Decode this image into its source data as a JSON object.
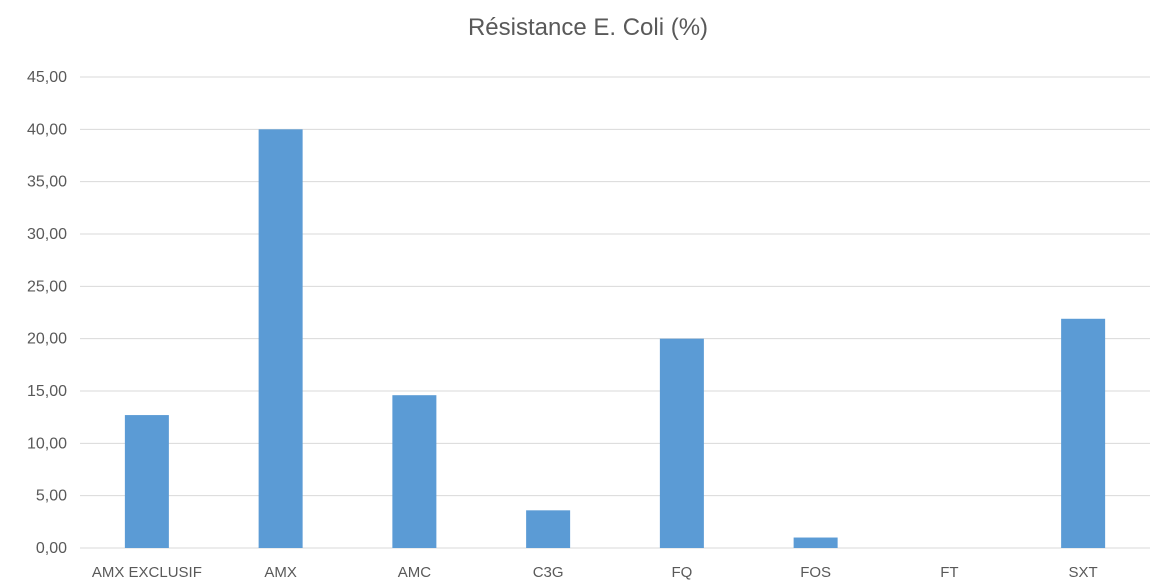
{
  "chart_data": {
    "type": "bar",
    "title": "Résistance E. Coli (%)",
    "categories": [
      "AMX EXCLUSIF",
      "AMX",
      "AMC",
      "C3G",
      "FQ",
      "FOS",
      "FT",
      "SXT"
    ],
    "values": [
      12.7,
      40.0,
      14.6,
      3.6,
      20.0,
      1.0,
      0.0,
      21.9
    ],
    "ylim": [
      0,
      45
    ],
    "ytick_step": 5,
    "ytick_labels": [
      "0,00",
      "5,00",
      "10,00",
      "15,00",
      "20,00",
      "25,00",
      "30,00",
      "35,00",
      "40,00",
      "45,00"
    ],
    "xlabel": "",
    "ylabel": "",
    "grid": true,
    "bar_color": "#5b9bd5",
    "grid_color": "#d9d9d9"
  }
}
